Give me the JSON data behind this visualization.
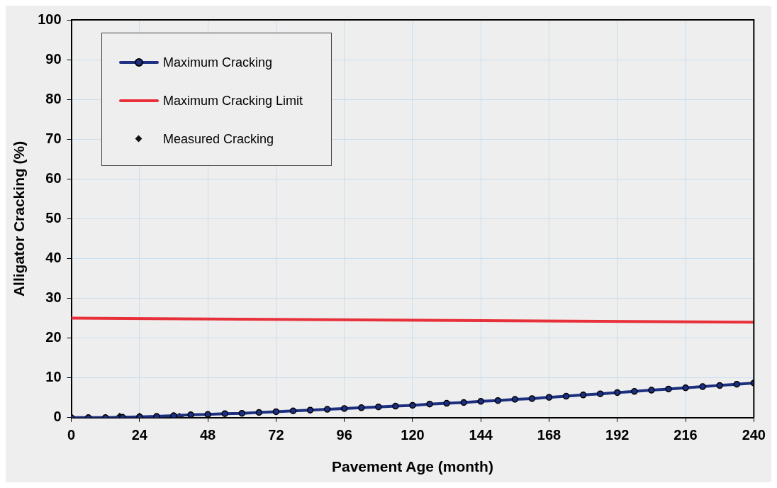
{
  "chart_data": {
    "type": "line",
    "xlabel": "Pavement Age (month)",
    "ylabel": "Alligator Cracking (%)",
    "xlim": [
      0,
      240
    ],
    "xticks": [
      0,
      24,
      48,
      72,
      96,
      120,
      144,
      168,
      192,
      216,
      240
    ],
    "ylim": [
      0,
      100
    ],
    "yticks": [
      0,
      10,
      20,
      30,
      40,
      50,
      60,
      70,
      80,
      90,
      100
    ],
    "grid": true,
    "legend": "top left",
    "series": [
      {
        "name": "Maximum Cracking",
        "marker": "circle",
        "color": "#1c2f80",
        "x": [
          0,
          6,
          12,
          18,
          24,
          30,
          36,
          42,
          48,
          54,
          60,
          66,
          72,
          78,
          84,
          90,
          96,
          102,
          108,
          114,
          120,
          126,
          132,
          138,
          144,
          150,
          156,
          162,
          168,
          174,
          180,
          186,
          192,
          198,
          204,
          210,
          216,
          222,
          228,
          234,
          240
        ],
        "values": [
          0,
          0,
          0,
          0.1,
          0.2,
          0.3,
          0.5,
          0.7,
          0.8,
          1.0,
          1.1,
          1.3,
          1.5,
          1.7,
          1.9,
          2.1,
          2.3,
          2.5,
          2.7,
          2.9,
          3.1,
          3.4,
          3.6,
          3.8,
          4.1,
          4.3,
          4.6,
          4.8,
          5.1,
          5.4,
          5.7,
          6.0,
          6.3,
          6.6,
          6.9,
          7.2,
          7.5,
          7.8,
          8.1,
          8.4,
          8.7
        ]
      },
      {
        "name": "Maximum Cracking Limit",
        "marker": "none",
        "color": "#e8303a",
        "x": [
          0,
          240
        ],
        "values": [
          25,
          24
        ]
      },
      {
        "name": "Measured Cracking",
        "type": "scatter",
        "marker": "diamond",
        "color": "#111111",
        "x": [
          17,
          24,
          38
        ],
        "values": [
          0,
          0,
          0
        ]
      }
    ]
  }
}
